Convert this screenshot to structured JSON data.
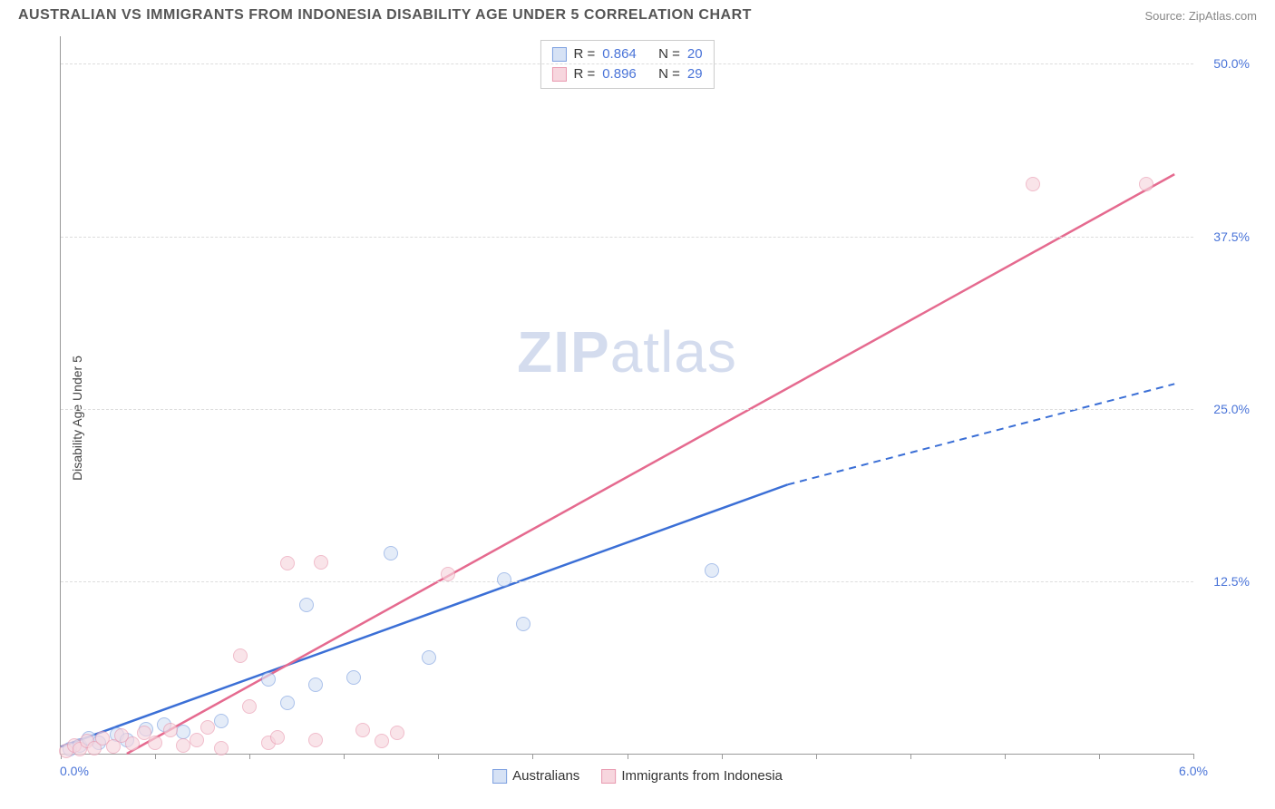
{
  "header": {
    "title": "AUSTRALIAN VS IMMIGRANTS FROM INDONESIA DISABILITY AGE UNDER 5 CORRELATION CHART",
    "source_label": "Source: ZipAtlas.com"
  },
  "chart": {
    "type": "scatter",
    "ylabel": "Disability Age Under 5",
    "watermark": "ZIPatlas",
    "xlim": [
      0,
      6.0
    ],
    "ylim": [
      0,
      52
    ],
    "x_origin_label": "0.0%",
    "x_max_label": "6.0%",
    "x_tick_positions": [
      0,
      0.5,
      1.0,
      1.5,
      2.0,
      2.5,
      3.0,
      3.5,
      4.0,
      4.5,
      5.0,
      5.5,
      6.0
    ],
    "y_ticks": [
      {
        "v": 12.5,
        "label": "12.5%"
      },
      {
        "v": 25.0,
        "label": "25.0%"
      },
      {
        "v": 37.5,
        "label": "37.5%"
      },
      {
        "v": 50.0,
        "label": "50.0%"
      }
    ],
    "grid_color": "#dddddd",
    "background_color": "#ffffff",
    "marker_radius": 8,
    "series": [
      {
        "key": "blue",
        "name": "Australians",
        "fill": "#d6e2f5",
        "stroke": "#7da0e0",
        "line_color": "#3b6fd6",
        "R": "0.864",
        "N": "20",
        "trend": {
          "x1": 0.0,
          "y1": 0.5,
          "x2": 3.85,
          "y2": 19.5,
          "x2_ext": 5.9,
          "y2_ext": 26.8,
          "dashed_ext": true
        },
        "points": [
          {
            "x": 0.05,
            "y": 0.3
          },
          {
            "x": 0.1,
            "y": 0.6
          },
          {
            "x": 0.15,
            "y": 1.1
          },
          {
            "x": 0.2,
            "y": 0.8
          },
          {
            "x": 0.3,
            "y": 1.4
          },
          {
            "x": 0.35,
            "y": 1.0
          },
          {
            "x": 0.45,
            "y": 1.8
          },
          {
            "x": 0.55,
            "y": 2.1
          },
          {
            "x": 0.65,
            "y": 1.6
          },
          {
            "x": 0.85,
            "y": 2.4
          },
          {
            "x": 1.1,
            "y": 5.4
          },
          {
            "x": 1.2,
            "y": 3.7
          },
          {
            "x": 1.3,
            "y": 10.8
          },
          {
            "x": 1.35,
            "y": 5.0
          },
          {
            "x": 1.55,
            "y": 5.5
          },
          {
            "x": 1.75,
            "y": 14.5
          },
          {
            "x": 1.95,
            "y": 7.0
          },
          {
            "x": 2.35,
            "y": 12.6
          },
          {
            "x": 2.45,
            "y": 9.4
          },
          {
            "x": 3.45,
            "y": 13.3
          }
        ]
      },
      {
        "key": "pink",
        "name": "Immigrants from Indonesia",
        "fill": "#f7d6de",
        "stroke": "#e99ab0",
        "line_color": "#e56a8f",
        "R": "0.896",
        "N": "29",
        "trend": {
          "x1": 0.35,
          "y1": 0.0,
          "x2": 5.9,
          "y2": 42.0,
          "dashed_ext": false
        },
        "points": [
          {
            "x": 0.03,
            "y": 0.2
          },
          {
            "x": 0.07,
            "y": 0.6
          },
          {
            "x": 0.1,
            "y": 0.3
          },
          {
            "x": 0.14,
            "y": 0.9
          },
          {
            "x": 0.18,
            "y": 0.4
          },
          {
            "x": 0.22,
            "y": 1.1
          },
          {
            "x": 0.28,
            "y": 0.5
          },
          {
            "x": 0.32,
            "y": 1.3
          },
          {
            "x": 0.38,
            "y": 0.7
          },
          {
            "x": 0.44,
            "y": 1.5
          },
          {
            "x": 0.5,
            "y": 0.8
          },
          {
            "x": 0.58,
            "y": 1.7
          },
          {
            "x": 0.65,
            "y": 0.6
          },
          {
            "x": 0.72,
            "y": 1.0
          },
          {
            "x": 0.78,
            "y": 1.9
          },
          {
            "x": 0.85,
            "y": 0.4
          },
          {
            "x": 0.95,
            "y": 7.1
          },
          {
            "x": 1.0,
            "y": 3.4
          },
          {
            "x": 1.1,
            "y": 0.8
          },
          {
            "x": 1.15,
            "y": 1.2
          },
          {
            "x": 1.2,
            "y": 13.8
          },
          {
            "x": 1.35,
            "y": 1.0
          },
          {
            "x": 1.38,
            "y": 13.9
          },
          {
            "x": 1.6,
            "y": 1.7
          },
          {
            "x": 1.7,
            "y": 0.9
          },
          {
            "x": 1.78,
            "y": 1.5
          },
          {
            "x": 2.05,
            "y": 13.0
          },
          {
            "x": 5.15,
            "y": 41.3
          },
          {
            "x": 5.75,
            "y": 41.3
          }
        ]
      }
    ]
  }
}
